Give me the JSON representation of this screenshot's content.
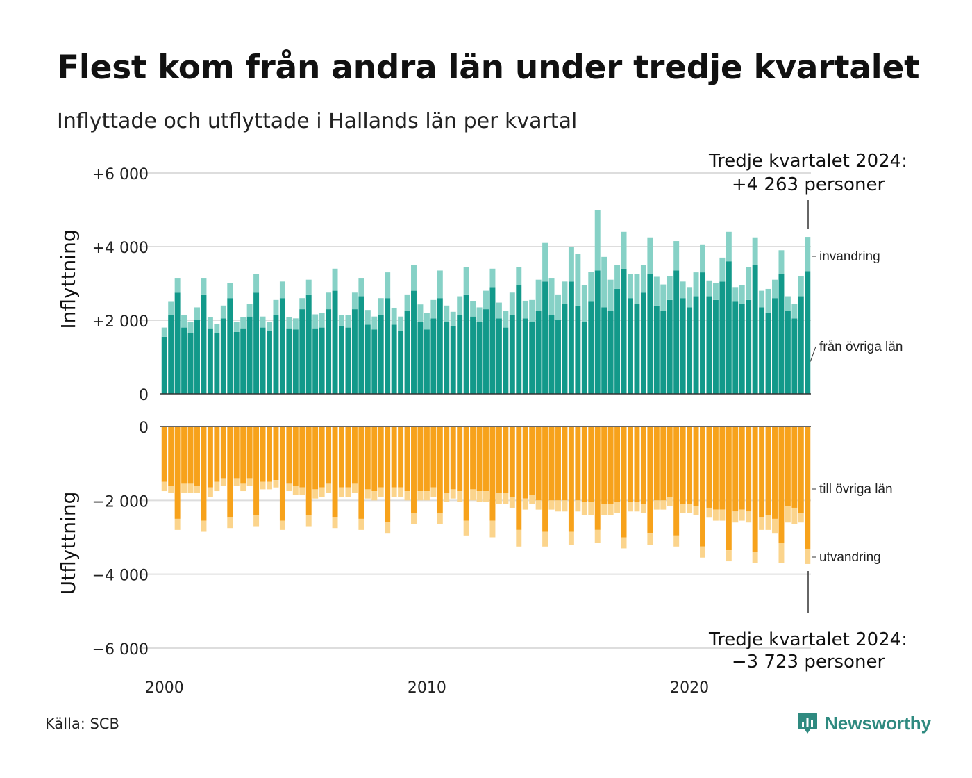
{
  "title": "Flest kom från andra län under tredje kvartalet",
  "subtitle": "Inflyttade och utflyttade i Hallands län per kvartal",
  "source": "Källa: SCB",
  "brand": "Newsworthy",
  "colors": {
    "in_other": "#12998a",
    "in_imm": "#86d1c6",
    "out_other": "#f7a21b",
    "out_emi": "#fbd48c",
    "grid": "#dddddd",
    "brand": "#2f8a80"
  },
  "chart_data": {
    "type": "bar",
    "stacked": true,
    "x_start": "2000 Q1",
    "x_ticks": [
      "2000",
      "2010",
      "2020"
    ],
    "grid": true,
    "panels": [
      {
        "ylabel": "Inflyttning",
        "ylim": [
          0,
          6000
        ],
        "ticks": [
          "0",
          "+2 000",
          "+4 000",
          "+6 000"
        ],
        "series": [
          {
            "name": "från övriga län",
            "values": [
              1550,
              2150,
              2750,
              1800,
              1650,
              2000,
              2700,
              1780,
              1650,
              2050,
              2600,
              1680,
              1780,
              2100,
              2750,
              1800,
              1700,
              2150,
              2600,
              1780,
              1750,
              2300,
              2700,
              1780,
              1800,
              2300,
              2800,
              1850,
              1800,
              2300,
              2650,
              1880,
              1750,
              2150,
              2600,
              1880,
              1700,
              2250,
              2800,
              1950,
              1750,
              2050,
              2600,
              1950,
              1850,
              2150,
              2700,
              2100,
              1950,
              2300,
              2900,
              2050,
              1800,
              2150,
              2950,
              2050,
              1950,
              2250,
              3050,
              2150,
              2000,
              2450,
              3050,
              2400,
              1950,
              2500,
              3350,
              2350,
              2250,
              2850,
              3400,
              2600,
              2450,
              2750,
              3250,
              2400,
              2250,
              2550,
              3350,
              2600,
              2350,
              2650,
              3300,
              2650,
              2550,
              3050,
              3600,
              2500,
              2450,
              2550,
              3500,
              2350,
              2200,
              2600,
              3250,
              2250,
              2050,
              2650,
              3330
            ]
          },
          {
            "name": "invandring",
            "values": [
              250,
              350,
              400,
              350,
              300,
              350,
              450,
              300,
              250,
              350,
              400,
              280,
              300,
              350,
              500,
              300,
              250,
              400,
              450,
              300,
              300,
              300,
              400,
              380,
              400,
              450,
              600,
              300,
              350,
              450,
              500,
              400,
              350,
              450,
              700,
              460,
              400,
              450,
              700,
              480,
              450,
              500,
              750,
              450,
              380,
              500,
              740,
              420,
              400,
              500,
              500,
              430,
              450,
              600,
              500,
              480,
              600,
              850,
              1050,
              1000,
              700,
              600,
              950,
              1400,
              1000,
              820,
              1650,
              1370,
              850,
              650,
              1000,
              650,
              800,
              750,
              1000,
              780,
              720,
              650,
              800,
              450,
              550,
              650,
              760,
              430,
              450,
              650,
              800,
              400,
              500,
              900,
              750,
              450,
              650,
              500,
              650,
              400,
              400,
              550,
              933
            ]
          }
        ]
      },
      {
        "ylabel": "Utflyttning",
        "ylim": [
          -6000,
          0
        ],
        "ticks": [
          "0",
          "−2 000",
          "−4 000",
          "−6 000"
        ],
        "series": [
          {
            "name": "till övriga län",
            "values": [
              -1500,
              -1600,
              -2500,
              -1550,
              -1550,
              -1600,
              -2550,
              -1650,
              -1500,
              -1400,
              -2450,
              -1400,
              -1550,
              -1400,
              -2400,
              -1500,
              -1500,
              -1450,
              -2550,
              -1550,
              -1600,
              -1650,
              -2400,
              -1700,
              -1650,
              -1550,
              -2450,
              -1650,
              -1650,
              -1550,
              -2500,
              -1700,
              -1750,
              -1650,
              -2600,
              -1650,
              -1650,
              -1750,
              -2350,
              -1750,
              -1750,
              -1650,
              -2350,
              -1800,
              -1700,
              -1750,
              -2550,
              -1700,
              -1750,
              -1750,
              -2550,
              -1800,
              -1800,
              -1900,
              -2800,
              -1950,
              -1850,
              -2000,
              -2850,
              -2000,
              -2000,
              -2000,
              -2850,
              -2000,
              -2050,
              -2050,
              -2800,
              -2100,
              -2100,
              -2050,
              -3000,
              -2050,
              -2050,
              -2100,
              -2900,
              -2000,
              -2000,
              -1900,
              -2950,
              -2100,
              -2100,
              -2150,
              -3250,
              -2200,
              -2250,
              -2250,
              -3350,
              -2300,
              -2250,
              -2300,
              -3400,
              -2450,
              -2400,
              -2500,
              -3150,
              -2150,
              -2200,
              -2350,
              -3310
            ]
          },
          {
            "name": "utvandring",
            "values": [
              -250,
              -200,
              -300,
              -250,
              -250,
              -200,
              -300,
              -250,
              -250,
              -200,
              -300,
              -200,
              -200,
              -200,
              -300,
              -200,
              -200,
              -200,
              -250,
              -200,
              -250,
              -200,
              -300,
              -250,
              -250,
              -250,
              -300,
              -250,
              -250,
              -250,
              -300,
              -250,
              -250,
              -250,
              -300,
              -250,
              -250,
              -250,
              -300,
              -250,
              -250,
              -250,
              -300,
              -250,
              -250,
              -300,
              -400,
              -300,
              -300,
              -300,
              -450,
              -300,
              -300,
              -300,
              -450,
              -300,
              -250,
              -250,
              -400,
              -250,
              -300,
              -300,
              -350,
              -300,
              -350,
              -350,
              -350,
              -300,
              -300,
              -300,
              -300,
              -250,
              -250,
              -250,
              -300,
              -250,
              -250,
              -250,
              -300,
              -250,
              -250,
              -250,
              -300,
              -250,
              -300,
              -300,
              -300,
              -300,
              -300,
              -300,
              -300,
              -350,
              -400,
              -400,
              -550,
              -450,
              -450,
              -250,
              -413
            ]
          }
        ]
      }
    ],
    "annotations": [
      {
        "text": "Tredje kvartalet 2024:",
        "value_text": "+4 263 personer",
        "panel": "Inflyttning"
      },
      {
        "text": "Tredje kvartalet 2024:",
        "value_text": "−3 723 personer",
        "panel": "Utflyttning"
      }
    ]
  }
}
